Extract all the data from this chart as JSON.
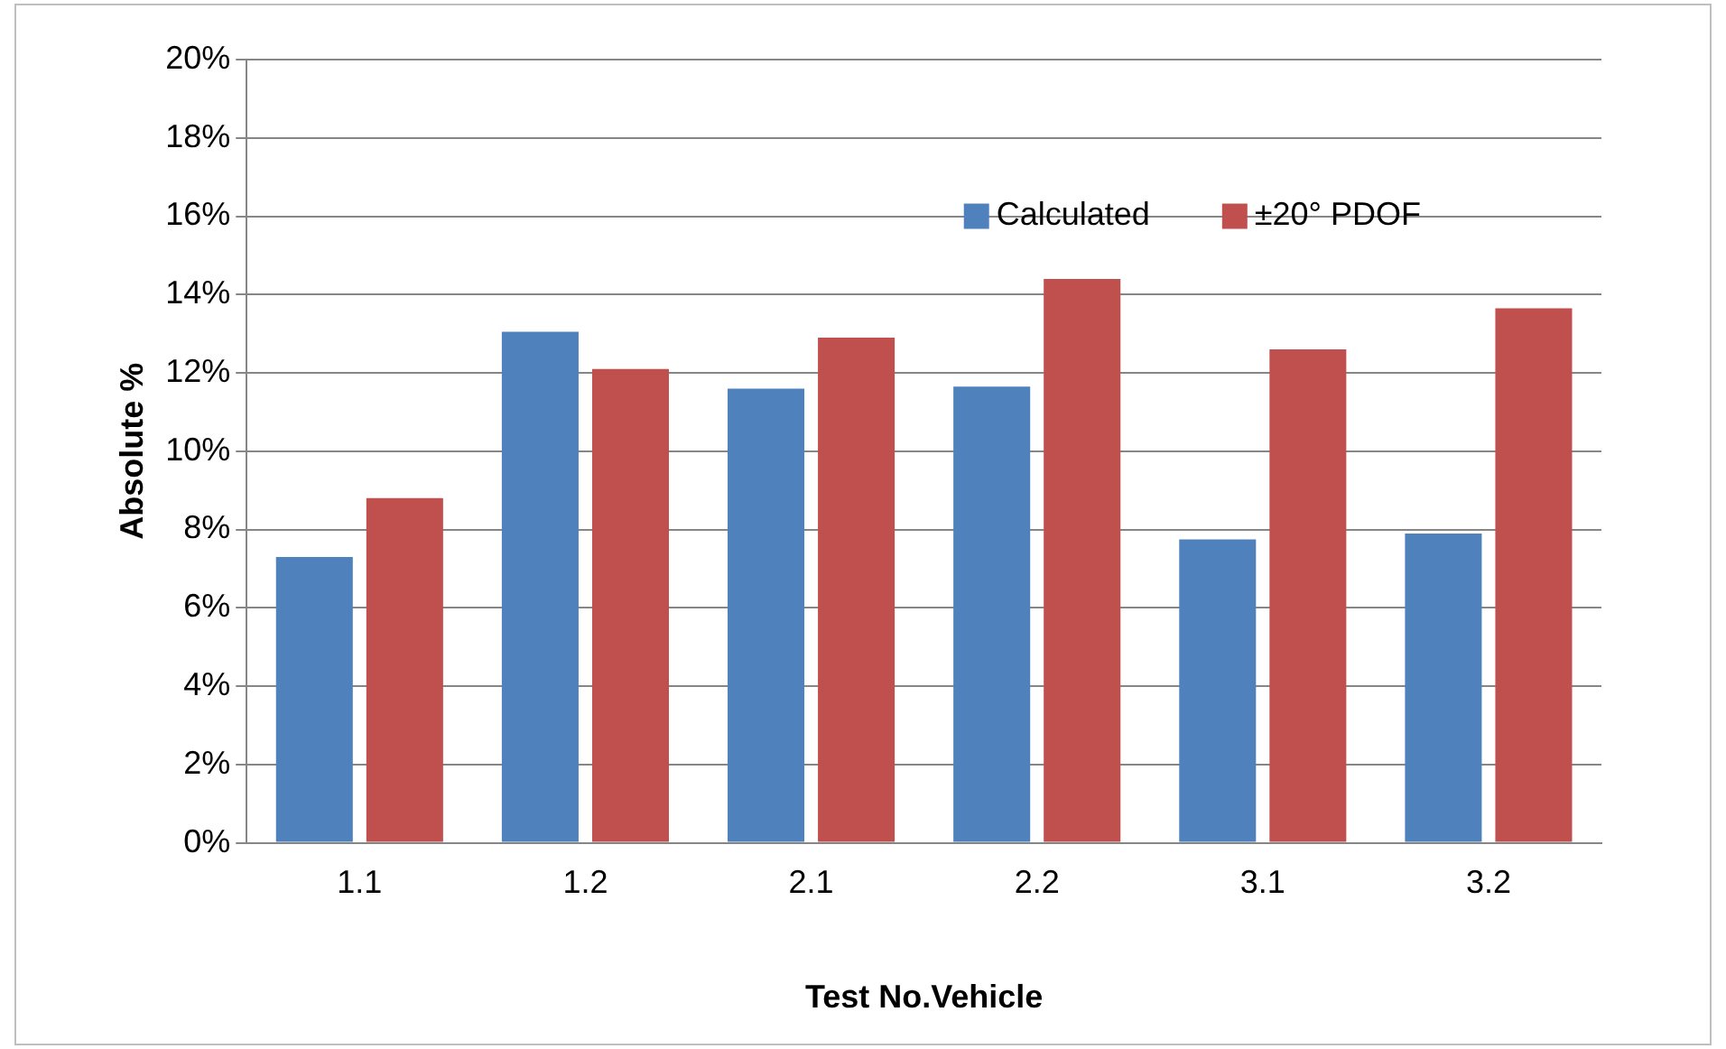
{
  "chart_data": {
    "type": "bar",
    "xlabel": "Test No.Vehicle",
    "ylabel": "Absolute %",
    "categories": [
      "1.1",
      "1.2",
      "2.1",
      "2.2",
      "3.1",
      "3.2"
    ],
    "series": [
      {
        "name": "Calculated",
        "color": "#4f81bd",
        "values": [
          7.3,
          13.05,
          11.6,
          11.65,
          7.75,
          7.9
        ]
      },
      {
        "name": "±20° PDOF",
        "color": "#c0504d",
        "values": [
          8.8,
          12.1,
          12.9,
          14.4,
          12.6,
          13.65
        ]
      }
    ],
    "ylim": [
      0,
      20
    ],
    "yticks": [
      {
        "value": 0,
        "label": "0%"
      },
      {
        "value": 2,
        "label": "2%"
      },
      {
        "value": 4,
        "label": "4%"
      },
      {
        "value": 6,
        "label": "6%"
      },
      {
        "value": 8,
        "label": "8%"
      },
      {
        "value": 10,
        "label": "10%"
      },
      {
        "value": 12,
        "label": "12%"
      },
      {
        "value": 14,
        "label": "14%"
      },
      {
        "value": 16,
        "label": "16%"
      },
      {
        "value": 18,
        "label": "18%"
      },
      {
        "value": 20,
        "label": "20%"
      }
    ],
    "grid": "y",
    "legend": "top right"
  }
}
